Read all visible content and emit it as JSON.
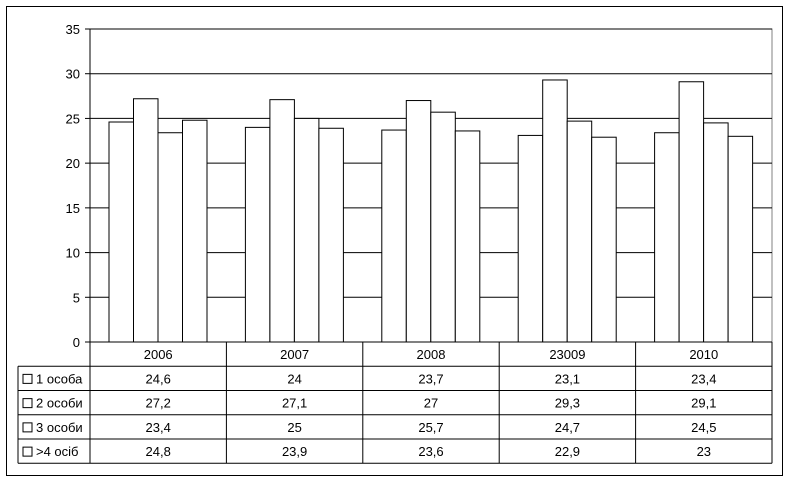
{
  "chart_data": {
    "type": "bar",
    "categories": [
      "2006",
      "2007",
      "2008",
      "23009",
      "2010"
    ],
    "series": [
      {
        "name": "1 особа",
        "values": [
          24.6,
          24,
          23.7,
          23.1,
          23.4
        ]
      },
      {
        "name": "2 особи",
        "values": [
          27.2,
          27.1,
          27,
          29.3,
          29.1
        ]
      },
      {
        "name": "3 особи",
        "values": [
          23.4,
          25,
          25.7,
          24.7,
          24.5
        ]
      },
      {
        "name": ">4 осіб",
        "values": [
          24.8,
          23.9,
          23.6,
          22.9,
          23
        ]
      }
    ],
    "table_values": [
      [
        "24,6",
        "24",
        "23,7",
        "23,1",
        "23,4"
      ],
      [
        "27,2",
        "27,1",
        "27",
        "29,3",
        "29,1"
      ],
      [
        "23,4",
        "25",
        "25,7",
        "24,7",
        "24,5"
      ],
      [
        "24,8",
        "23,9",
        "23,6",
        "22,9",
        "23"
      ]
    ],
    "y_ticks": [
      "0",
      "5",
      "10",
      "15",
      "20",
      "25",
      "30",
      "35"
    ],
    "ylim": [
      0,
      35
    ],
    "grid": true,
    "legend_marker": "□",
    "colors": {
      "bar_fill": "#ffffff",
      "bar_stroke": "#000000",
      "grid": "#000000"
    }
  }
}
